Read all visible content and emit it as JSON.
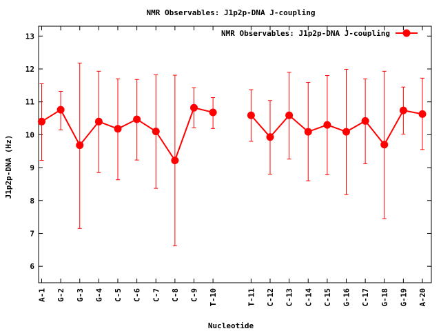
{
  "chart_data": {
    "type": "line",
    "title": "NMR Observables: J1p2p-DNA J-coupling",
    "xlabel": "Nucleotide",
    "ylabel": "J1p2p-DNA (Hz)",
    "ylim": [
      5.5,
      13.3
    ],
    "yticks": [
      6,
      7,
      8,
      9,
      10,
      11,
      12,
      13
    ],
    "grid": false,
    "legend_position": "top-right",
    "color": "#ff0000",
    "series": [
      {
        "name": "NMR Observables: J1p2p-DNA J-coupling",
        "points": [
          {
            "label": "A-1",
            "x": 1,
            "y": 10.4,
            "err_low": 9.22,
            "err_high": 11.55
          },
          {
            "label": "G-2",
            "x": 2,
            "y": 10.76,
            "err_low": 10.15,
            "err_high": 11.32
          },
          {
            "label": "G-3",
            "x": 3,
            "y": 9.68,
            "err_low": 7.15,
            "err_high": 12.18
          },
          {
            "label": "G-4",
            "x": 4,
            "y": 10.4,
            "err_low": 8.85,
            "err_high": 11.93
          },
          {
            "label": "C-5",
            "x": 5,
            "y": 10.18,
            "err_low": 8.63,
            "err_high": 11.7
          },
          {
            "label": "C-6",
            "x": 6,
            "y": 10.47,
            "err_low": 9.23,
            "err_high": 11.68
          },
          {
            "label": "C-7",
            "x": 7,
            "y": 10.1,
            "err_low": 8.37,
            "err_high": 11.82
          },
          {
            "label": "C-8",
            "x": 8,
            "y": 9.22,
            "err_low": 6.62,
            "err_high": 11.81
          },
          {
            "label": "C-9",
            "x": 9,
            "y": 10.82,
            "err_low": 10.21,
            "err_high": 11.43
          },
          {
            "label": "T-10",
            "x": 10,
            "y": 10.68,
            "err_low": 10.19,
            "err_high": 11.13
          },
          {
            "label": "T-11",
            "x": 12,
            "y": 10.59,
            "err_low": 9.8,
            "err_high": 11.37
          },
          {
            "label": "C-12",
            "x": 13,
            "y": 9.93,
            "err_low": 8.8,
            "err_high": 11.04
          },
          {
            "label": "C-13",
            "x": 14,
            "y": 10.59,
            "err_low": 9.26,
            "err_high": 11.9
          },
          {
            "label": "C-14",
            "x": 15,
            "y": 10.09,
            "err_low": 8.6,
            "err_high": 11.59
          },
          {
            "label": "C-15",
            "x": 16,
            "y": 10.3,
            "err_low": 8.78,
            "err_high": 11.8
          },
          {
            "label": "G-16",
            "x": 17,
            "y": 10.09,
            "err_low": 8.18,
            "err_high": 11.99
          },
          {
            "label": "C-17",
            "x": 18,
            "y": 10.42,
            "err_low": 9.12,
            "err_high": 11.7
          },
          {
            "label": "G-18",
            "x": 19,
            "y": 9.7,
            "err_low": 7.45,
            "err_high": 11.93
          },
          {
            "label": "G-19",
            "x": 20,
            "y": 10.74,
            "err_low": 10.02,
            "err_high": 11.45
          },
          {
            "label": "A-20",
            "x": 21,
            "y": 10.63,
            "err_low": 9.55,
            "err_high": 11.72
          }
        ]
      }
    ]
  }
}
